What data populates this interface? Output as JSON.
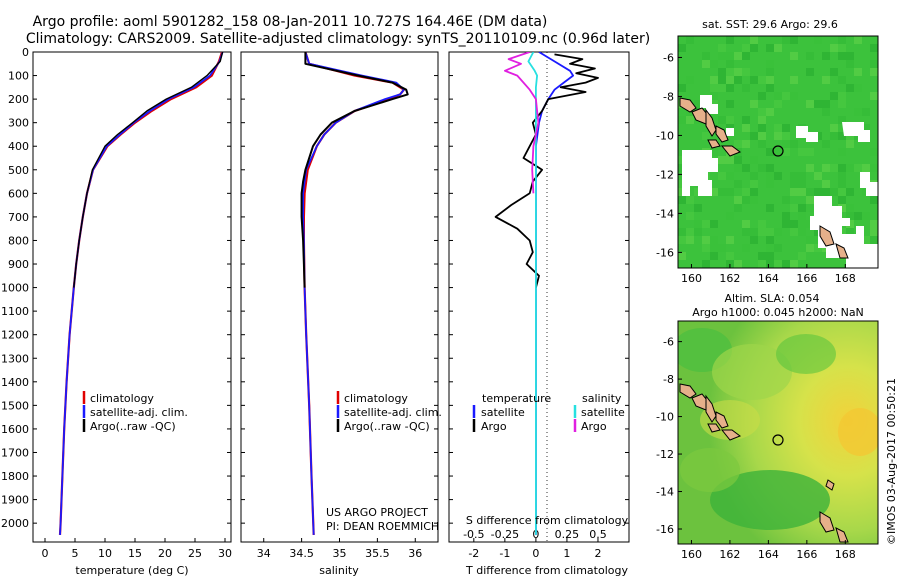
{
  "title": {
    "line1": "Argo profile: aoml 5901282_158 08-Jan-2011 10.727S 164.46E (DM data)",
    "line2": "Climatology: CARS2009. Satellite-adjusted climatology: synTS_20110109.nc (0.96d later)"
  },
  "credit": "©IMOS 03-Aug-2017 00:50:21",
  "colors": {
    "clim": "#e00000",
    "sat": "#1a1aff",
    "argo": "#000000",
    "sal_sat": "#27e0e0",
    "sal_argo": "#e020e0"
  },
  "chart_data": [
    {
      "type": "line",
      "id": "temperature",
      "xlabel": "temperature (deg C)",
      "xlim": [
        -2,
        31
      ],
      "xticks": [
        "0",
        "5",
        "10",
        "15",
        "20",
        "25",
        "30"
      ],
      "ylim": [
        0,
        2080
      ],
      "yticks": [
        "0",
        "100",
        "200",
        "300",
        "400",
        "500",
        "600",
        "700",
        "800",
        "900",
        "1000",
        "1100",
        "1200",
        "1300",
        "1400",
        "1500",
        "1600",
        "1700",
        "1800",
        "1900",
        "2000"
      ],
      "legend": [
        "climatology",
        "satellite-adj. clim.",
        "Argo(..raw -QC)"
      ],
      "series": [
        {
          "name": "climatology",
          "depth": [
            0,
            40,
            100,
            150,
            200,
            250,
            300,
            350,
            400,
            500,
            600,
            700,
            800,
            900,
            1000,
            1200,
            1400,
            1600,
            1800,
            2000,
            2050
          ],
          "values": [
            29.5,
            29.0,
            27.8,
            25.2,
            21.0,
            17.8,
            15.0,
            12.6,
            10.4,
            8.0,
            7.0,
            6.3,
            5.7,
            5.2,
            4.8,
            4.1,
            3.6,
            3.2,
            2.9,
            2.6,
            2.5
          ]
        },
        {
          "name": "satellite-adj. clim.",
          "depth": [
            0,
            40,
            100,
            150,
            200,
            250,
            300,
            350,
            400,
            500,
            600,
            700,
            800,
            900,
            1000,
            1200,
            1400,
            1600,
            1800,
            2000,
            2050
          ],
          "values": [
            29.6,
            29.1,
            27.5,
            24.8,
            20.6,
            17.5,
            14.8,
            12.5,
            10.3,
            8.0,
            7.0,
            6.3,
            5.7,
            5.2,
            4.8,
            4.1,
            3.6,
            3.2,
            2.9,
            2.6,
            2.5
          ]
        },
        {
          "name": "Argo(..raw -QC)",
          "depth": [
            0,
            40,
            100,
            150,
            200,
            250,
            300,
            350,
            400,
            500,
            600,
            700,
            800,
            900,
            1000
          ],
          "values": [
            29.6,
            29.2,
            27.0,
            24.4,
            20.2,
            17.0,
            14.6,
            12.1,
            10.0,
            7.9,
            7.0,
            6.3,
            5.7,
            5.2,
            4.8
          ]
        }
      ]
    },
    {
      "type": "line",
      "id": "salinity",
      "xlabel": "salinity",
      "xlim": [
        33.7,
        36.3
      ],
      "xticks": [
        "34",
        "34.5",
        "35",
        "35.5",
        "36"
      ],
      "ylim": [
        0,
        2080
      ],
      "legend": [
        "climatology",
        "satellite-adj. clim.",
        "Argo(..raw -QC)"
      ],
      "annotation": [
        "US ARGO PROJECT",
        "PI: DEAN ROEMMICH"
      ],
      "series": [
        {
          "name": "climatology",
          "depth": [
            0,
            50,
            100,
            130,
            160,
            180,
            200,
            250,
            300,
            350,
            400,
            500,
            600,
            700,
            800,
            1000,
            1200,
            1500,
            1800,
            2050
          ],
          "values": [
            34.55,
            34.6,
            35.2,
            35.7,
            35.85,
            35.8,
            35.65,
            35.2,
            34.95,
            34.8,
            34.7,
            34.58,
            34.54,
            34.53,
            34.53,
            34.54,
            34.56,
            34.6,
            34.63,
            34.66
          ]
        },
        {
          "name": "satellite-adj. clim.",
          "depth": [
            0,
            50,
            100,
            130,
            160,
            180,
            200,
            250,
            300,
            350,
            400,
            500,
            600,
            700,
            800,
            1000,
            1200,
            1500,
            1800,
            2050
          ],
          "values": [
            34.55,
            34.6,
            35.3,
            35.75,
            35.85,
            35.8,
            35.6,
            35.2,
            34.95,
            34.8,
            34.7,
            34.56,
            34.52,
            34.52,
            34.53,
            34.54,
            34.56,
            34.6,
            34.63,
            34.66
          ]
        },
        {
          "name": "Argo(..raw -QC)",
          "depth": [
            0,
            50,
            100,
            130,
            160,
            180,
            200,
            250,
            300,
            350,
            400,
            500,
            550,
            600,
            700,
            800,
            900,
            1000
          ],
          "values": [
            34.55,
            34.55,
            35.25,
            35.7,
            35.88,
            35.9,
            35.7,
            35.2,
            34.9,
            34.75,
            34.65,
            34.55,
            34.52,
            34.5,
            34.5,
            34.52,
            34.53,
            34.54
          ]
        }
      ]
    },
    {
      "type": "line",
      "id": "differences",
      "xlabel": "T difference from climatology",
      "xlabel2": "S difference from climatology",
      "xlim": [
        -2.8,
        3.0
      ],
      "xticks": [
        "-2",
        "-1",
        "0",
        "1",
        "2"
      ],
      "xticks_top": [
        "-0.5",
        "-0.25",
        "0",
        "0.25",
        "0.5"
      ],
      "ylim": [
        0,
        2080
      ],
      "legend_left": [
        "temperature",
        "satellite",
        "Argo"
      ],
      "legend_right": [
        "salinity",
        "satellite",
        "Argo"
      ],
      "series": [
        {
          "name": "T satellite",
          "depth": [
            0,
            40,
            80,
            100,
            130,
            160,
            200,
            250,
            300,
            400,
            500,
            600,
            700,
            800,
            1000,
            1500,
            2050
          ],
          "values": [
            0.1,
            0.6,
            1.1,
            1.2,
            0.9,
            0.6,
            0.4,
            0.2,
            0.1,
            0.0,
            0.0,
            0.0,
            0.0,
            0.0,
            0.0,
            0.0,
            0.0
          ]
        },
        {
          "name": "T Argo",
          "depth": [
            10,
            30,
            50,
            70,
            90,
            110,
            130,
            150,
            170,
            200,
            250,
            300,
            350,
            400,
            450,
            500,
            550,
            600,
            650,
            700,
            750,
            800,
            850,
            900,
            950,
            1000
          ],
          "values": [
            0.6,
            1.5,
            1.1,
            1.9,
            1.3,
            2.0,
            1.6,
            0.8,
            1.6,
            0.4,
            0.2,
            -0.1,
            0.0,
            -0.2,
            -0.4,
            0.2,
            -0.1,
            -0.2,
            -0.8,
            -1.3,
            -0.6,
            -0.2,
            -0.1,
            -0.3,
            0.1,
            0.0
          ]
        },
        {
          "name": "S satellite",
          "depth": [
            0,
            40,
            80,
            100,
            150,
            200,
            300,
            400,
            600,
            1000,
            2050
          ],
          "values": [
            -0.02,
            -0.06,
            -0.01,
            0.01,
            0.0,
            0.0,
            0.0,
            0.0,
            0.0,
            0.0,
            0.0
          ]
        },
        {
          "name": "S Argo",
          "depth": [
            0,
            30,
            50,
            80,
            100,
            130,
            160,
            200,
            250,
            300,
            400,
            500,
            600
          ],
          "values": [
            -0.05,
            -0.22,
            -0.12,
            -0.25,
            -0.15,
            -0.1,
            -0.05,
            0.0,
            0.01,
            0.02,
            -0.02,
            -0.03,
            -0.02
          ]
        }
      ]
    },
    {
      "type": "heatmap",
      "id": "sst-map",
      "title": "sat. SST: 29.6 Argo: 29.6",
      "xticks": [
        "160",
        "162",
        "164",
        "166",
        "168"
      ],
      "yticks": [
        "-6",
        "-8",
        "-10",
        "-12",
        "-14",
        "-16"
      ],
      "xlim": [
        159.3,
        169.7
      ],
      "ylim": [
        -16.8,
        -4.9
      ],
      "argo_position": [
        164.46,
        -10.727
      ]
    },
    {
      "type": "heatmap",
      "id": "sla-map",
      "title1": "Altim. SLA: 0.054",
      "title2": "Argo h1000: 0.045 h2000: NaN",
      "xticks": [
        "160",
        "162",
        "164",
        "166",
        "168"
      ],
      "yticks": [
        "-6",
        "-8",
        "-10",
        "-12",
        "-14",
        "-16"
      ],
      "xlim": [
        159.3,
        169.7
      ],
      "ylim": [
        -16.8,
        -4.9
      ],
      "argo_position": [
        164.46,
        -10.727
      ]
    }
  ]
}
